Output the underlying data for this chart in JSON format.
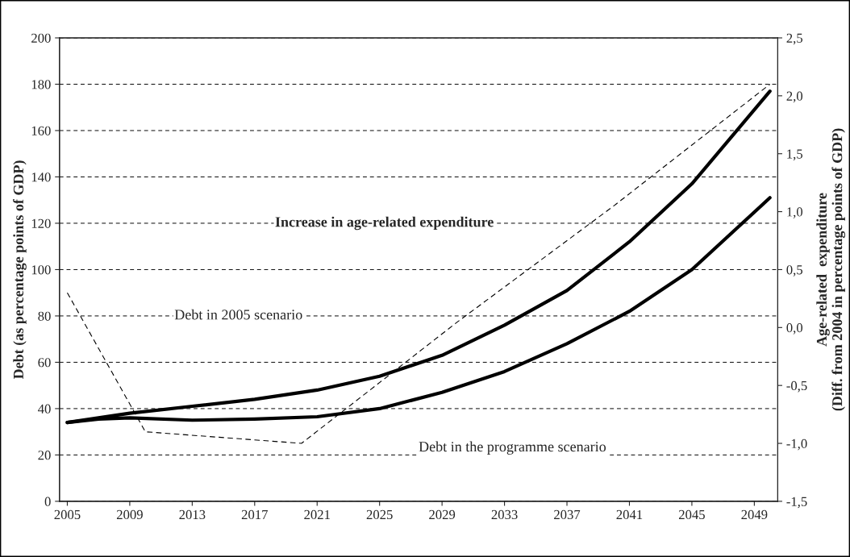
{
  "chart_data": {
    "type": "line",
    "ylabel": "Debt (as percentage points of GDP)",
    "y2label": "Age-related  expenditure\n(Diff. from 2004 in percentage points of GDP)",
    "xlim": [
      2004.5,
      2050.5
    ],
    "xticks": [
      2005,
      2009,
      2013,
      2017,
      2021,
      2025,
      2029,
      2033,
      2037,
      2041,
      2045,
      2049
    ],
    "ylim": [
      0,
      200
    ],
    "yticks": [
      0,
      20,
      40,
      60,
      80,
      100,
      120,
      140,
      160,
      180,
      200
    ],
    "y2lim": [
      -1.5,
      2.5
    ],
    "y2ticks": [
      {
        "value": -1.5,
        "label": "-1,5"
      },
      {
        "value": -1.0,
        "label": "-1,0"
      },
      {
        "value": -0.5,
        "label": "-0,5"
      },
      {
        "value": 0,
        "label": "0,0"
      },
      {
        "value": 0.5,
        "label": "0,5"
      },
      {
        "value": 1.0,
        "label": "1,0"
      },
      {
        "value": 1.5,
        "label": "1,5"
      },
      {
        "value": 2.0,
        "label": "2,0"
      },
      {
        "value": 2.5,
        "label": "2,5"
      }
    ],
    "grid": "y",
    "series": [
      {
        "color": "#000000",
        "line_style": "solid",
        "x": [
          2005,
          2007,
          2009,
          2013,
          2017,
          2021,
          2025,
          2029,
          2033,
          2037,
          2041,
          2045,
          2050
        ],
        "values": [
          34,
          36,
          38,
          41,
          44,
          48,
          54,
          63,
          76,
          91,
          112,
          137,
          177
        ]
      },
      {
        "color": "#000000",
        "line_style": "solid",
        "x": [
          2005,
          2007,
          2009,
          2013,
          2017,
          2021,
          2025,
          2029,
          2033,
          2037,
          2041,
          2045,
          2050
        ],
        "values": [
          34,
          35.5,
          36,
          35,
          35.5,
          36.5,
          40,
          47,
          56,
          68,
          82,
          100,
          131
        ]
      },
      {
        "color": "#000000",
        "line_style": "dashed",
        "axis": "y2",
        "x": [
          2005,
          2010,
          2020,
          2030,
          2040,
          2050
        ],
        "values": [
          0.3,
          -0.9,
          -1.0,
          0.05,
          1.05,
          2.1
        ]
      }
    ],
    "annotations": [
      "Increase in age-related expenditure",
      "Debt in 2005 scenario",
      "Debt in the programme scenario"
    ]
  }
}
